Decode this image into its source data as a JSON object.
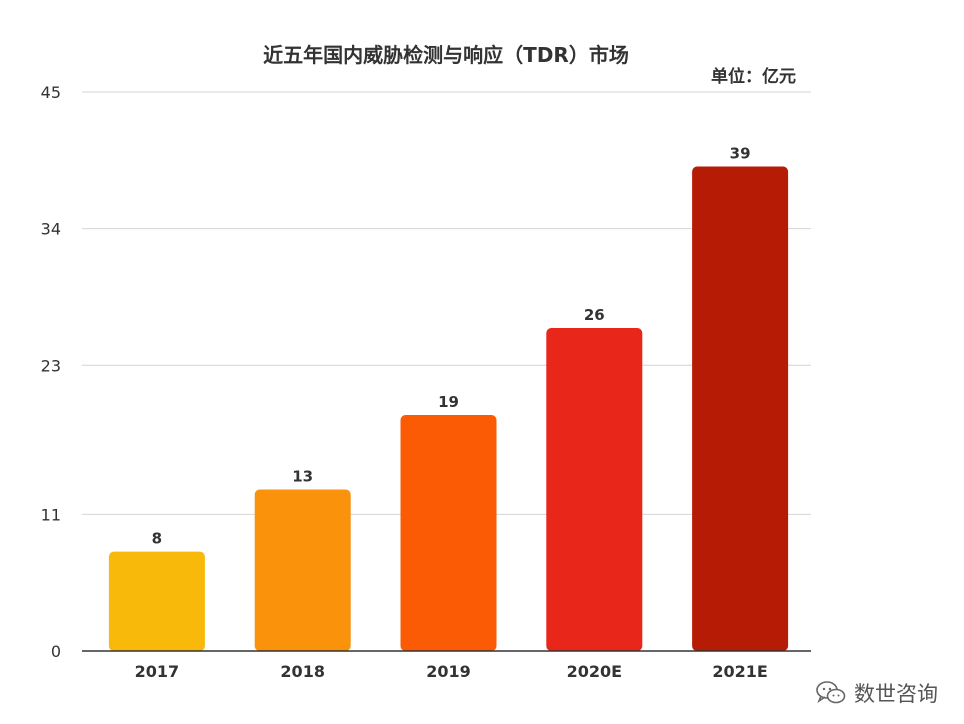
{
  "chart_data": {
    "type": "bar",
    "title": "近五年国内威胁检测与响应（TDR）市场",
    "unit_label": "单位：亿元",
    "categories": [
      "2017",
      "2018",
      "2019",
      "2020E",
      "2021E"
    ],
    "values": [
      8,
      13,
      19,
      26,
      39
    ],
    "data_labels": [
      "8",
      "13",
      "19",
      "26",
      "39"
    ],
    "y_ticks": [
      "0",
      "11",
      "23",
      "34",
      "45"
    ],
    "ylim": [
      0,
      45
    ],
    "grid": true,
    "colors": [
      "#F8B90A",
      "#FA920B",
      "#FA5B04",
      "#E9261A",
      "#B61B06"
    ]
  },
  "watermark": {
    "text": "数世咨询",
    "icon": "wechat-icon"
  }
}
